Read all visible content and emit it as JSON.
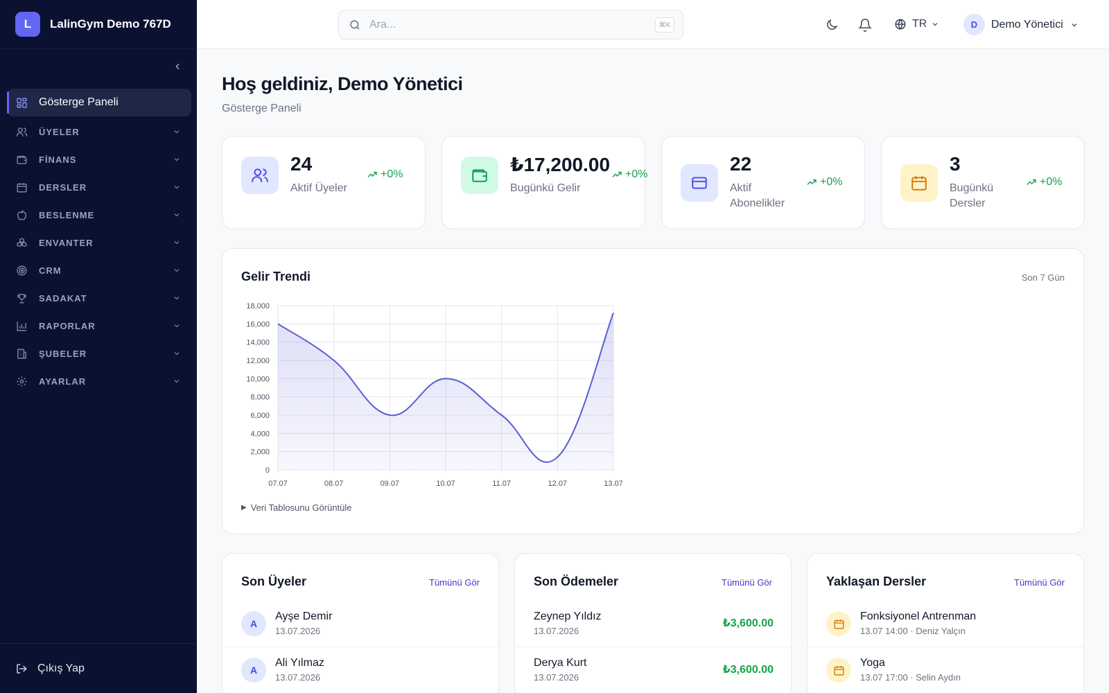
{
  "brand": {
    "initial": "L",
    "name": "LalinGym Demo 767D"
  },
  "sidebar": {
    "items": [
      {
        "label": "Gösterge Paneli",
        "icon": "dashboard-icon",
        "active": true
      },
      {
        "label": "ÜYELER",
        "icon": "users-icon"
      },
      {
        "label": "FİNANS",
        "icon": "wallet-icon"
      },
      {
        "label": "DERSLER",
        "icon": "calendar-icon"
      },
      {
        "label": "BESLENME",
        "icon": "apple-icon"
      },
      {
        "label": "ENVANTER",
        "icon": "boxes-icon"
      },
      {
        "label": "CRM",
        "icon": "target-icon"
      },
      {
        "label": "SADAKAT",
        "icon": "trophy-icon"
      },
      {
        "label": "RAPORLAR",
        "icon": "bar-chart-icon"
      },
      {
        "label": "ŞUBELER",
        "icon": "building-icon"
      },
      {
        "label": "AYARLAR",
        "icon": "gear-icon"
      }
    ],
    "logout_label": "Çıkış Yap"
  },
  "header": {
    "search_placeholder": "Ara...",
    "search_shortcut": "⌘K",
    "language": "TR",
    "user_initial": "D",
    "user_name": "Demo Yönetici"
  },
  "page": {
    "title": "Hoş geldiniz, Demo Yönetici",
    "subtitle": "Gösterge Paneli"
  },
  "stats": [
    {
      "value": "24",
      "label": "Aktif Üyeler",
      "trend": "+0%",
      "icon": "users-icon",
      "bg": "#e0e7ff",
      "color": "#4f46e5"
    },
    {
      "value": "₺17,200.00",
      "label": "Bugünkü Gelir",
      "trend": "+0%",
      "icon": "wallet-icon",
      "bg": "#d1fae5",
      "color": "#059669"
    },
    {
      "value": "22",
      "label": "Aktif Abonelikler",
      "trend": "+0%",
      "icon": "credit-card-icon",
      "bg": "#e0e7ff",
      "color": "#4f46e5"
    },
    {
      "value": "3",
      "label": "Bugünkü Dersler",
      "trend": "+0%",
      "icon": "calendar-icon",
      "bg": "#fef3c7",
      "color": "#d97706"
    }
  ],
  "revenue": {
    "title": "Gelir Trendi",
    "range": "Son 7 Gün",
    "toggle_label": "Veri Tablosunu Görüntüle"
  },
  "chart_data": {
    "type": "area",
    "title": "Gelir Trendi",
    "categories": [
      "07.07",
      "08.07",
      "09.07",
      "10.07",
      "11.07",
      "12.07",
      "13.07"
    ],
    "values": [
      16000,
      12000,
      6000,
      10000,
      6000,
      1400,
      17200
    ],
    "y_ticks": [
      "0",
      "2,000",
      "4,000",
      "6,000",
      "8,000",
      "10,000",
      "12,000",
      "14,000",
      "16,000",
      "18,000"
    ],
    "ylim": [
      0,
      18000
    ],
    "grid": true,
    "color": "#5b5bd6"
  },
  "recent_members": {
    "title": "Son Üyeler",
    "link": "Tümünü Gör",
    "items": [
      {
        "initial": "A",
        "name": "Ayşe Demir",
        "date": "13.07.2026"
      },
      {
        "initial": "A",
        "name": "Ali Yılmaz",
        "date": "13.07.2026"
      }
    ]
  },
  "recent_payments": {
    "title": "Son Ödemeler",
    "link": "Tümünü Gör",
    "items": [
      {
        "name": "Zeynep Yıldız",
        "date": "13.07.2026",
        "amount": "₺3,600.00"
      },
      {
        "name": "Derya Kurt",
        "date": "13.07.2026",
        "amount": "₺3,600.00"
      }
    ]
  },
  "upcoming_classes": {
    "title": "Yaklaşan Dersler",
    "link": "Tümünü Gör",
    "items": [
      {
        "name": "Fonksiyonel Antrenman",
        "detail": "13.07 14:00 · Deniz Yalçın"
      },
      {
        "name": "Yoga",
        "detail": "13.07 17:00 · Selin Aydın"
      }
    ]
  }
}
